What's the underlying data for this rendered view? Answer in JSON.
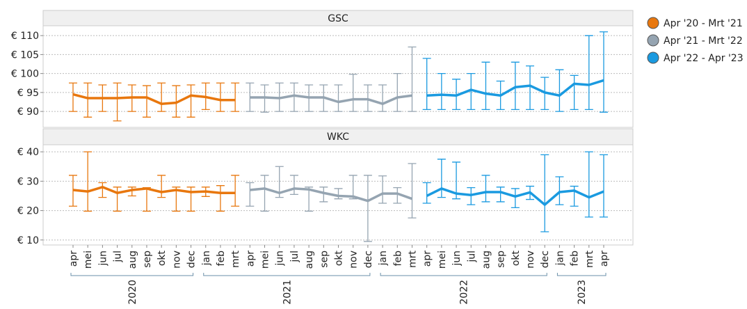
{
  "chart_data": {
    "type": "line",
    "categories": [
      "apr",
      "mei",
      "jun",
      "jul",
      "aug",
      "sep",
      "okt",
      "nov",
      "dec",
      "jan",
      "feb",
      "mrt",
      "apr",
      "mei",
      "jun",
      "jul",
      "aug",
      "sep",
      "okt",
      "nov",
      "dec",
      "jan",
      "feb",
      "mrt",
      "apr",
      "mei",
      "jun",
      "jul",
      "aug",
      "sep",
      "okt",
      "nov",
      "dec",
      "jan",
      "feb",
      "mrt",
      "apr"
    ],
    "category_years": [
      "2020",
      "2020",
      "2020",
      "2020",
      "2020",
      "2020",
      "2020",
      "2020",
      "2020",
      "2021",
      "2021",
      "2021",
      "2021",
      "2021",
      "2021",
      "2021",
      "2021",
      "2021",
      "2021",
      "2021",
      "2021",
      "2022",
      "2022",
      "2022",
      "2022",
      "2022",
      "2022",
      "2022",
      "2022",
      "2022",
      "2022",
      "2022",
      "2022",
      "2023",
      "2023",
      "2023",
      "2023"
    ],
    "legend": "right",
    "series": [
      {
        "name": "Apr '20 - Mrt '21",
        "color": "#e8770e"
      },
      {
        "name": "Apr '21 - Mrt '22",
        "color": "#95a4b1"
      },
      {
        "name": "Apr '22 - Apr '23",
        "color": "#1a9ae0"
      }
    ],
    "panels": [
      {
        "title": "GSC",
        "ylim": [
          85.8,
          112.6
        ],
        "grid": true,
        "yticks": [
          {
            "value": 90,
            "label": "€ 90"
          },
          {
            "value": 95,
            "label": "€ 95"
          },
          {
            "value": 100,
            "label": "€ 100"
          },
          {
            "value": 105,
            "label": "€ 105"
          },
          {
            "value": 110,
            "label": "€ 110"
          }
        ],
        "series": [
          {
            "values": [
              94.5,
              93.5,
              93.5,
              93.5,
              93.7,
              93.7,
              92,
              92.3,
              94.2,
              93.8,
              93,
              93,
              null,
              null,
              null,
              null,
              null,
              null,
              null,
              null,
              null,
              null,
              null,
              null,
              null,
              null,
              null,
              null,
              null,
              null,
              null,
              null,
              null,
              null,
              null,
              null,
              null
            ],
            "low": [
              90,
              88.5,
              90,
              87.5,
              90,
              88.5,
              90,
              88.5,
              88.5,
              90.5,
              90,
              90,
              null,
              null,
              null,
              null,
              null,
              null,
              null,
              null,
              null,
              null,
              null,
              null,
              null,
              null,
              null,
              null,
              null,
              null,
              null,
              null,
              null,
              null,
              null,
              null,
              null
            ],
            "high": [
              97.5,
              97.5,
              97,
              97.5,
              97,
              96.8,
              97.5,
              96.8,
              97,
              97.5,
              97.5,
              97.5,
              null,
              null,
              null,
              null,
              null,
              null,
              null,
              null,
              null,
              null,
              null,
              null,
              null,
              null,
              null,
              null,
              null,
              null,
              null,
              null,
              null,
              null,
              null,
              null,
              null
            ]
          },
          {
            "values": [
              null,
              null,
              null,
              null,
              null,
              null,
              null,
              null,
              null,
              null,
              null,
              null,
              93.7,
              93.7,
              93.5,
              94.2,
              93.7,
              93.7,
              92.5,
              93.2,
              93.2,
              92,
              93.7,
              94.2,
              null,
              null,
              null,
              null,
              null,
              null,
              null,
              null,
              null,
              null,
              null,
              null,
              null
            ],
            "low": [
              null,
              null,
              null,
              null,
              null,
              null,
              null,
              null,
              null,
              null,
              null,
              null,
              90,
              89.8,
              90,
              90,
              90,
              90,
              90,
              90,
              90,
              90,
              90,
              90,
              null,
              null,
              null,
              null,
              null,
              null,
              null,
              null,
              null,
              null,
              null,
              null,
              null
            ],
            "high": [
              null,
              null,
              null,
              null,
              null,
              null,
              null,
              null,
              null,
              null,
              null,
              null,
              97.5,
              97,
              97.5,
              97.5,
              97,
              97,
              97,
              99.8,
              97,
              97,
              100,
              107,
              null,
              null,
              null,
              null,
              null,
              null,
              null,
              null,
              null,
              null,
              null,
              null,
              null
            ]
          },
          {
            "values": [
              null,
              null,
              null,
              null,
              null,
              null,
              null,
              null,
              null,
              null,
              null,
              null,
              null,
              null,
              null,
              null,
              null,
              null,
              null,
              null,
              null,
              null,
              null,
              null,
              94.2,
              94.4,
              94.2,
              95.7,
              94.7,
              94.2,
              96.4,
              96.8,
              95,
              94.2,
              97.3,
              97,
              98.2
            ],
            "low": [
              null,
              null,
              null,
              null,
              null,
              null,
              null,
              null,
              null,
              null,
              null,
              null,
              null,
              null,
              null,
              null,
              null,
              null,
              null,
              null,
              null,
              null,
              null,
              null,
              90.5,
              90.5,
              90.5,
              90.5,
              90.5,
              90.5,
              90.5,
              90.5,
              90.5,
              90,
              90.5,
              90.5,
              89.8
            ],
            "high": [
              null,
              null,
              null,
              null,
              null,
              null,
              null,
              null,
              null,
              null,
              null,
              null,
              null,
              null,
              null,
              null,
              null,
              null,
              null,
              null,
              null,
              null,
              null,
              null,
              104,
              100,
              98.5,
              100,
              103,
              98,
              103,
              102,
              99,
              101,
              99.5,
              110,
              111
            ]
          }
        ]
      },
      {
        "title": "WKC",
        "ylim": [
          8.3,
          42.4
        ],
        "grid": true,
        "yticks": [
          {
            "value": 10,
            "label": "€ 10"
          },
          {
            "value": 20,
            "label": "€ 20"
          },
          {
            "value": 30,
            "label": "€ 30"
          },
          {
            "value": 40,
            "label": "€ 40"
          }
        ],
        "series": [
          {
            "values": [
              27,
              26.5,
              28,
              26,
              27,
              27.5,
              26.3,
              27,
              26.3,
              26.5,
              26,
              26,
              null,
              null,
              null,
              null,
              null,
              null,
              null,
              null,
              null,
              null,
              null,
              null,
              null,
              null,
              null,
              null,
              null,
              null,
              null,
              null,
              null,
              null,
              null,
              null,
              null
            ],
            "low": [
              21.5,
              19.8,
              24.5,
              19.8,
              25,
              19.8,
              24.5,
              19.8,
              19.8,
              24.8,
              19.8,
              21.5,
              null,
              null,
              null,
              null,
              null,
              null,
              null,
              null,
              null,
              null,
              null,
              null,
              null,
              null,
              null,
              null,
              null,
              null,
              null,
              null,
              null,
              null,
              null,
              null,
              null
            ],
            "high": [
              32,
              40,
              29.5,
              28,
              28,
              27.8,
              32,
              28,
              28,
              28,
              28.5,
              32,
              null,
              null,
              null,
              null,
              null,
              null,
              null,
              null,
              null,
              null,
              null,
              null,
              null,
              null,
              null,
              null,
              null,
              null,
              null,
              null,
              null,
              null,
              null,
              null,
              null
            ]
          },
          {
            "values": [
              null,
              null,
              null,
              null,
              null,
              null,
              null,
              null,
              null,
              null,
              null,
              null,
              27,
              27.5,
              26,
              27.5,
              27.2,
              26,
              25,
              24.8,
              23.3,
              25.8,
              25.8,
              24,
              null,
              null,
              null,
              null,
              null,
              null,
              null,
              null,
              null,
              null,
              null,
              null,
              null
            ],
            "low": [
              null,
              null,
              null,
              null,
              null,
              null,
              null,
              null,
              null,
              null,
              null,
              null,
              21.5,
              19.8,
              24.5,
              25.5,
              19.8,
              23,
              24,
              24,
              9.5,
              22.5,
              22.5,
              17.5,
              null,
              null,
              null,
              null,
              null,
              null,
              null,
              null,
              null,
              null,
              null,
              null,
              null
            ],
            "high": [
              null,
              null,
              null,
              null,
              null,
              null,
              null,
              null,
              null,
              null,
              null,
              null,
              29.5,
              32,
              35,
              32,
              28,
              28,
              27.5,
              32,
              32,
              31.8,
              27.8,
              36,
              null,
              null,
              null,
              null,
              null,
              null,
              null,
              null,
              null,
              null,
              null,
              null,
              null
            ]
          },
          {
            "values": [
              null,
              null,
              null,
              null,
              null,
              null,
              null,
              null,
              null,
              null,
              null,
              null,
              null,
              null,
              null,
              null,
              null,
              null,
              null,
              null,
              null,
              null,
              null,
              null,
              25,
              27.5,
              25.8,
              25.3,
              26.3,
              26.3,
              24.8,
              26.2,
              22,
              26.3,
              26.8,
              24.5,
              26.5
            ],
            "low": [
              null,
              null,
              null,
              null,
              null,
              null,
              null,
              null,
              null,
              null,
              null,
              null,
              null,
              null,
              null,
              null,
              null,
              null,
              null,
              null,
              null,
              null,
              null,
              null,
              22.5,
              24.5,
              24,
              22,
              23,
              23,
              21,
              23.8,
              12.8,
              22,
              21.5,
              17.8,
              17.8
            ],
            "high": [
              null,
              null,
              null,
              null,
              null,
              null,
              null,
              null,
              null,
              null,
              null,
              null,
              null,
              null,
              null,
              null,
              null,
              null,
              null,
              null,
              null,
              null,
              null,
              null,
              29.5,
              37.5,
              36.5,
              27.8,
              32,
              28,
              27.5,
              28.3,
              39,
              31.5,
              28.3,
              40,
              39
            ]
          }
        ]
      }
    ]
  }
}
